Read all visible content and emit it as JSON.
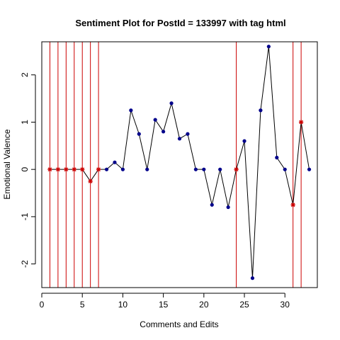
{
  "chart_data": {
    "type": "line",
    "title": "Sentiment Plot for PostId =  133997  with tag  html",
    "xlabel": "Comments and Edits",
    "ylabel": "Emotional Valence",
    "xlim": [
      0,
      34
    ],
    "ylim": [
      -2.5,
      2.7
    ],
    "x_ticks": [
      0,
      5,
      10,
      15,
      20,
      25,
      30
    ],
    "y_ticks": [
      -2,
      -1,
      0,
      1,
      2
    ],
    "grid": false,
    "x": [
      1,
      2,
      3,
      4,
      5,
      6,
      7,
      8,
      9,
      10,
      11,
      12,
      13,
      14,
      15,
      16,
      17,
      18,
      19,
      20,
      21,
      22,
      23,
      24,
      25,
      26,
      27,
      28,
      29,
      30,
      31,
      32,
      33
    ],
    "y": [
      0,
      0,
      0,
      0,
      0,
      -0.25,
      0,
      0,
      0.15,
      0,
      1.25,
      0.75,
      0,
      1.05,
      0.8,
      1.4,
      0.65,
      0.75,
      0,
      0,
      -0.75,
      0,
      -0.8,
      0,
      0.6,
      -2.3,
      1.25,
      2.6,
      0.25,
      0,
      -0.75,
      1.0,
      0
    ],
    "edit_points": [
      1,
      2,
      3,
      4,
      5,
      6,
      7,
      24,
      31,
      32
    ],
    "colors": {
      "line": "#000000",
      "comment_point": "#00008B",
      "edit_marker": "#CC0000",
      "vertical_line": "#CC0000"
    }
  }
}
